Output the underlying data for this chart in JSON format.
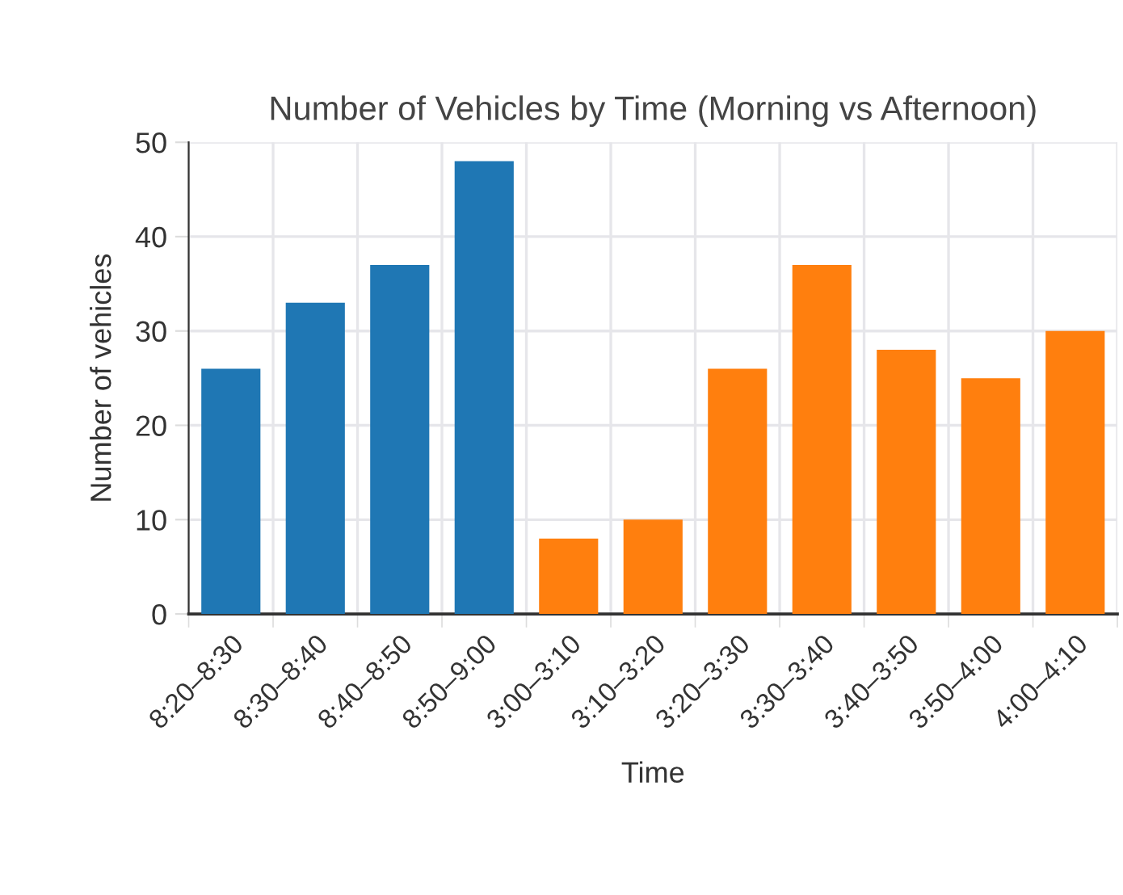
{
  "chart_data": {
    "type": "bar",
    "title": "Number of Vehicles by Time (Morning vs Afternoon)",
    "xlabel": "Time",
    "ylabel": "Number of vehicles",
    "categories": [
      "8:20–8:30",
      "8:30–8:40",
      "8:40–8:50",
      "8:50–9:00",
      "3:00–3:10",
      "3:10–3:20",
      "3:20–3:30",
      "3:30–3:40",
      "3:40–3:50",
      "3:50–4:00",
      "4:00–4:10"
    ],
    "values": [
      26,
      33,
      37,
      48,
      8,
      10,
      26,
      37,
      28,
      25,
      30
    ],
    "colors": [
      "#1f77b4",
      "#1f77b4",
      "#1f77b4",
      "#1f77b4",
      "#ff7f0e",
      "#ff7f0e",
      "#ff7f0e",
      "#ff7f0e",
      "#ff7f0e",
      "#ff7f0e",
      "#ff7f0e"
    ],
    "ylim": [
      0,
      50
    ],
    "yticks": [
      0,
      10,
      20,
      30,
      40,
      50
    ],
    "grid": true,
    "legend": false
  }
}
